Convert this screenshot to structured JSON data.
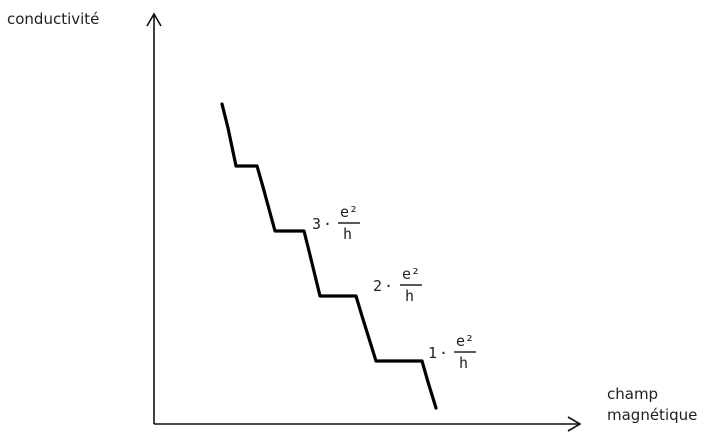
{
  "axes": {
    "y_label": "conductivité",
    "x_label_line1": "champ",
    "x_label_line2": "magnétique"
  },
  "plateaus": [
    {
      "coefficient": "3",
      "dot": "·",
      "numerator": "e²",
      "denominator": "h"
    },
    {
      "coefficient": "2",
      "dot": "·",
      "numerator": "e²",
      "denominator": "h"
    },
    {
      "coefficient": "1",
      "dot": "·",
      "numerator": "e²",
      "denominator": "h"
    }
  ]
}
